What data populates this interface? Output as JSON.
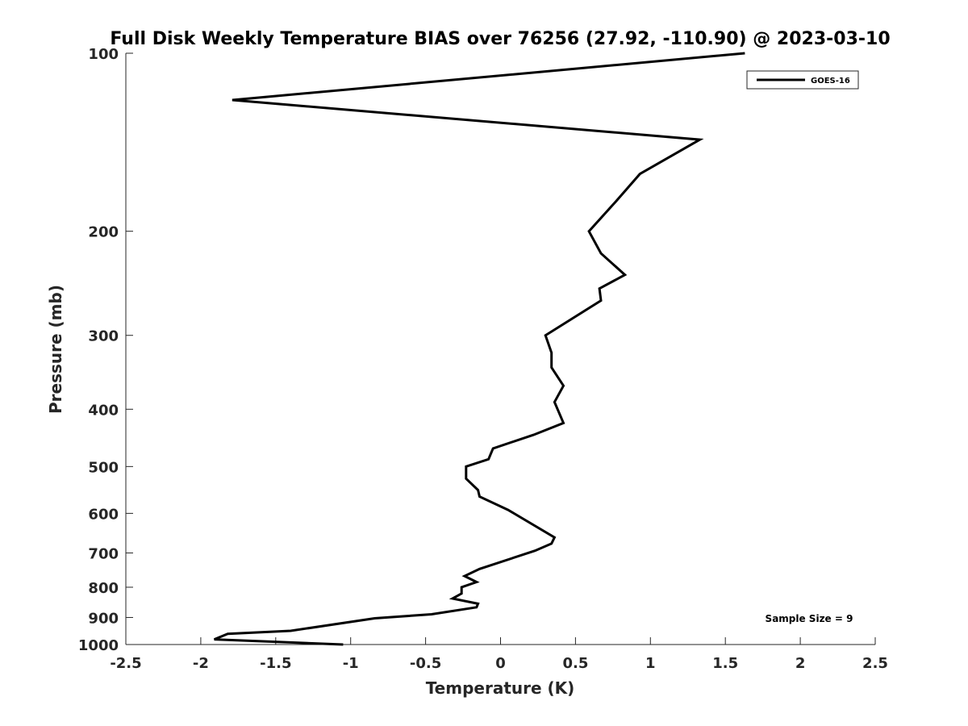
{
  "chart_data": {
    "type": "line",
    "title": "Full Disk Weekly Temperature BIAS over 76256 (27.92, -110.90) @ 2023-03-10",
    "xlabel": "Temperature (K)",
    "ylabel": "Pressure (mb)",
    "xlim": [
      -2.5,
      2.5
    ],
    "ylim": [
      100,
      1000
    ],
    "y_scale": "log",
    "y_reversed": true,
    "xticks": [
      -2.5,
      -2,
      -1.5,
      -1,
      -0.5,
      0,
      0.5,
      1,
      1.5,
      2,
      2.5
    ],
    "xtick_labels": [
      "-2.5",
      "-2",
      "-1.5",
      "-1",
      "-0.5",
      "0",
      "0.5",
      "1",
      "1.5",
      "2",
      "2.5"
    ],
    "yticks": [
      100,
      200,
      300,
      400,
      500,
      600,
      700,
      800,
      900,
      1000
    ],
    "ytick_labels": [
      "100",
      "200",
      "300",
      "400",
      "500",
      "600",
      "700",
      "800",
      "900",
      "1000"
    ],
    "grid": false,
    "legend": {
      "placement": "top-right",
      "entries": [
        "GOES-16"
      ]
    },
    "annotation": "Sample Size = 9",
    "series": [
      {
        "name": "GOES-16",
        "color": "#000000",
        "points": [
          [
            1.63,
            100
          ],
          [
            -1.79,
            120
          ],
          [
            1.33,
            140
          ],
          [
            0.93,
            160
          ],
          [
            0.77,
            178
          ],
          [
            0.59,
            200
          ],
          [
            0.67,
            218
          ],
          [
            0.83,
            237
          ],
          [
            0.66,
            250
          ],
          [
            0.67,
            262
          ],
          [
            0.3,
            300
          ],
          [
            0.34,
            321
          ],
          [
            0.34,
            340
          ],
          [
            0.42,
            365
          ],
          [
            0.36,
            389
          ],
          [
            0.42,
            422
          ],
          [
            0.22,
            442
          ],
          [
            -0.05,
            466
          ],
          [
            -0.08,
            486
          ],
          [
            -0.23,
            500
          ],
          [
            -0.23,
            524
          ],
          [
            -0.15,
            548
          ],
          [
            -0.14,
            562
          ],
          [
            0.05,
            592
          ],
          [
            0.36,
            659
          ],
          [
            0.34,
            675
          ],
          [
            0.23,
            694
          ],
          [
            -0.14,
            745
          ],
          [
            -0.24,
            766
          ],
          [
            -0.16,
            784
          ],
          [
            -0.26,
            800
          ],
          [
            -0.26,
            820
          ],
          [
            -0.32,
            836
          ],
          [
            -0.15,
            853
          ],
          [
            -0.16,
            865
          ],
          [
            -0.46,
            889
          ],
          [
            -0.84,
            903
          ],
          [
            -1.4,
            948
          ],
          [
            -1.82,
            959
          ],
          [
            -1.91,
            980
          ],
          [
            -1.05,
            1000
          ]
        ]
      }
    ]
  }
}
